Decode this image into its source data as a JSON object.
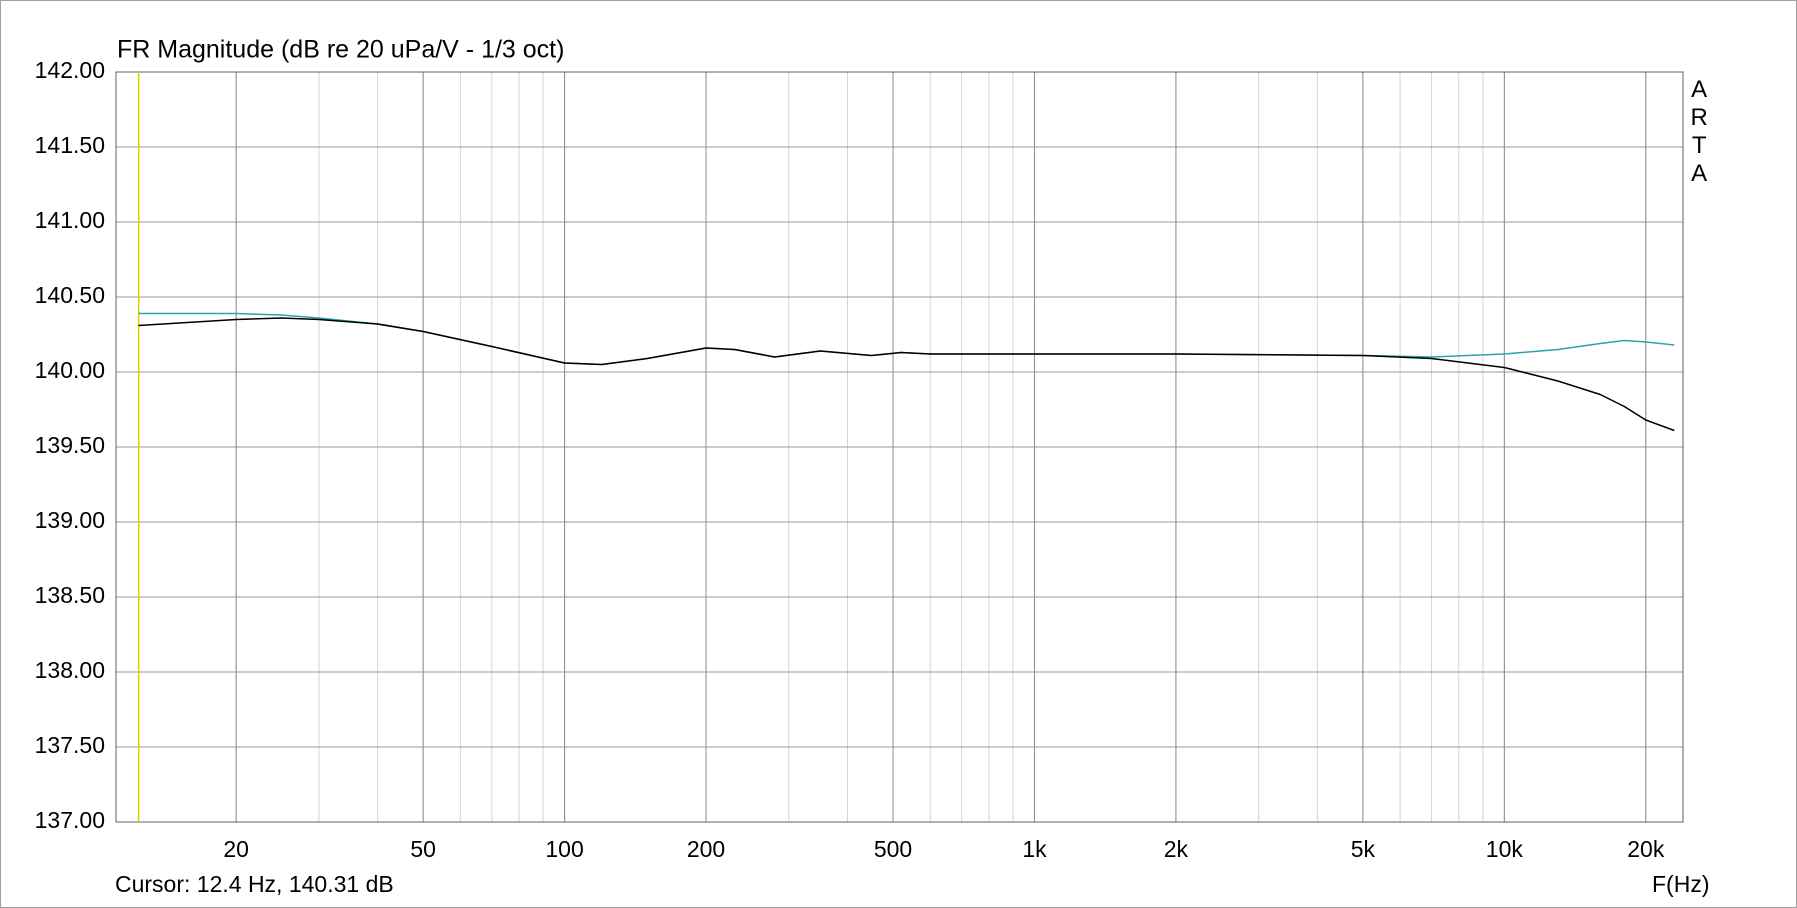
{
  "chart_data": {
    "type": "line",
    "title": "FR Magnitude (dB re 20 uPa/V - 1/3 oct)",
    "x_label": "F(Hz)",
    "watermark": "ARTA",
    "cursor": {
      "x": 12.4,
      "label": "Cursor: 12.4 Hz, 140.31 dB",
      "color": "#e0cc00"
    },
    "x_log": true,
    "grid": true,
    "minor_grid": true,
    "xlim": [
      11.1,
      24000
    ],
    "ylim": [
      137,
      142
    ],
    "xticks": [
      20,
      50,
      100,
      200,
      500,
      {
        "value": 1000,
        "label": "1k"
      },
      {
        "value": 2000,
        "label": "2k"
      },
      {
        "value": 5000,
        "label": "5k"
      },
      {
        "value": 10000,
        "label": "10k"
      },
      {
        "value": 20000,
        "label": "20k"
      }
    ],
    "yticks": [
      {
        "value": 137,
        "label": "137.00"
      },
      {
        "value": 137.5,
        "label": "137.50"
      },
      {
        "value": 138,
        "label": "138.00"
      },
      {
        "value": 138.5,
        "label": "138.50"
      },
      {
        "value": 139,
        "label": "139.00"
      },
      {
        "value": 139.5,
        "label": "139.50"
      },
      {
        "value": 140,
        "label": "140.00"
      },
      {
        "value": 140.5,
        "label": "140.50"
      },
      {
        "value": 141,
        "label": "141.00"
      },
      {
        "value": 141.5,
        "label": "141.50"
      },
      {
        "value": 142,
        "label": "142.00"
      }
    ],
    "x": [
      12.4,
      20,
      25,
      30,
      40,
      50,
      70,
      100,
      120,
      150,
      200,
      230,
      280,
      350,
      450,
      520,
      600,
      1000,
      2000,
      5000,
      7000,
      10000,
      13000,
      16000,
      18000,
      20000,
      23000
    ],
    "series": [
      {
        "color": "#2aa5a8",
        "values": [
          140.39,
          140.39,
          140.38,
          140.36,
          140.32,
          140.27,
          140.17,
          140.06,
          140.05,
          140.09,
          140.16,
          140.15,
          140.1,
          140.14,
          140.11,
          140.13,
          140.12,
          140.12,
          140.12,
          140.11,
          140.1,
          140.12,
          140.15,
          140.19,
          140.21,
          140.2,
          140.18
        ]
      },
      {
        "color": "#000000",
        "values": [
          140.31,
          140.35,
          140.36,
          140.35,
          140.32,
          140.27,
          140.17,
          140.06,
          140.05,
          140.09,
          140.16,
          140.15,
          140.1,
          140.14,
          140.11,
          140.13,
          140.12,
          140.12,
          140.12,
          140.11,
          140.09,
          140.03,
          139.94,
          139.85,
          139.77,
          139.68,
          139.61
        ]
      }
    ]
  }
}
